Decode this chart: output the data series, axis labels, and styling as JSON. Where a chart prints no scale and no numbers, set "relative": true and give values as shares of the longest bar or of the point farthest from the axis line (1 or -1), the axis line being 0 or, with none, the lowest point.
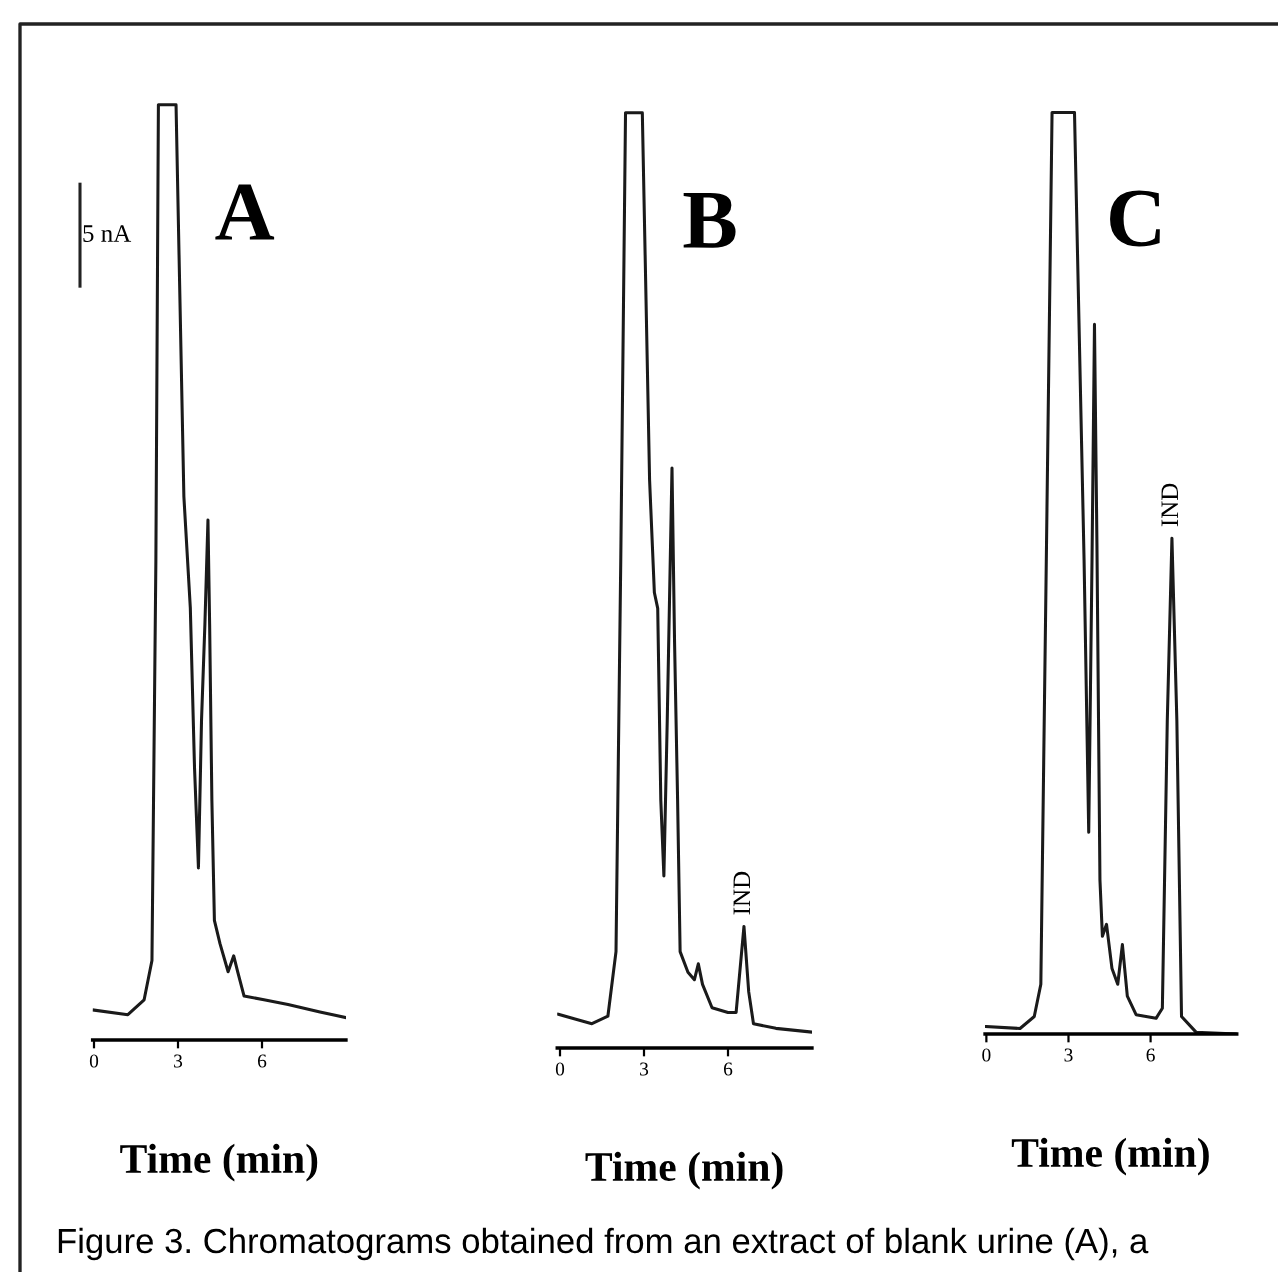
{
  "chart_data": [
    {
      "type": "line",
      "title": "A",
      "xlabel": "Time (min)",
      "relative": true,
      "xlim": [
        -0.05,
        9.0
      ],
      "xticks": [
        0,
        3,
        6
      ],
      "grid": false,
      "legend": false,
      "tick_labels": "x",
      "annotations": [
        "5 nA",
        "Figure 3. Chromatograms obtained from an extract of blank urine (A), a"
      ],
      "series": [
        {
          "color": "#1a1a1a",
          "x": [
            0.0,
            1.21,
            1.79,
            2.07,
            2.21,
            2.3,
            2.93,
            3.21,
            3.44,
            3.59,
            3.73,
            3.84,
            3.96,
            4.07,
            4.13,
            4.21,
            4.3,
            4.5,
            4.79,
            4.99,
            5.13,
            5.36,
            6.07,
            6.93,
            8.07,
            8.99
          ],
          "values": [
            0.032,
            0.027,
            0.043,
            0.085,
            0.513,
            1.0,
            1.0,
            0.581,
            0.462,
            0.291,
            0.184,
            0.342,
            0.444,
            0.556,
            0.444,
            0.256,
            0.128,
            0.103,
            0.073,
            0.09,
            0.073,
            0.047,
            0.043,
            0.038,
            0.03,
            0.024
          ]
        }
      ]
    },
    {
      "type": "line",
      "title": "B",
      "xlabel": "Time (min)",
      "relative": true,
      "xlim": [
        -0.1,
        9.0
      ],
      "xticks": [
        0,
        3,
        6
      ],
      "grid": false,
      "legend": false,
      "tick_labels": "x",
      "annotations": [
        {
          "text": "IND",
          "x": 6.57,
          "y": 0.13
        }
      ],
      "series": [
        {
          "color": "#1a1a1a",
          "x": [
            -0.06,
            1.14,
            1.71,
            2.0,
            2.17,
            2.34,
            2.94,
            3.2,
            3.37,
            3.49,
            3.6,
            3.71,
            3.83,
            4.0,
            4.09,
            4.2,
            4.29,
            4.57,
            4.8,
            4.94,
            5.09,
            5.43,
            6.0,
            6.29,
            6.57,
            6.74,
            6.91,
            7.71,
            9.0
          ],
          "values": [
            0.036,
            0.026,
            0.034,
            0.103,
            0.521,
            1.0,
            1.0,
            0.607,
            0.487,
            0.47,
            0.265,
            0.184,
            0.35,
            0.62,
            0.436,
            0.265,
            0.103,
            0.081,
            0.073,
            0.09,
            0.068,
            0.043,
            0.038,
            0.038,
            0.13,
            0.06,
            0.026,
            0.021,
            0.017
          ]
        }
      ]
    },
    {
      "type": "line",
      "title": "C",
      "xlabel": "Time (min)",
      "relative": true,
      "xlim": [
        -0.05,
        9.15
      ],
      "xticks": [
        0,
        3,
        6
      ],
      "grid": false,
      "legend": false,
      "tick_labels": "x",
      "annotations": [
        {
          "text": "IND",
          "x": 6.78,
          "y": 0.538
        }
      ],
      "series": [
        {
          "color": "#1a1a1a",
          "x": [
            0.0,
            1.23,
            1.75,
            1.99,
            2.19,
            2.4,
            3.22,
            3.57,
            3.74,
            3.86,
            3.95,
            4.04,
            4.15,
            4.24,
            4.39,
            4.59,
            4.8,
            4.97,
            5.15,
            5.47,
            6.2,
            6.43,
            6.61,
            6.78,
            6.96,
            7.13,
            7.66,
            9.12
          ],
          "values": [
            0.008,
            0.006,
            0.019,
            0.054,
            0.514,
            1.0,
            1.0,
            0.514,
            0.219,
            0.514,
            0.77,
            0.531,
            0.167,
            0.106,
            0.119,
            0.071,
            0.054,
            0.097,
            0.041,
            0.021,
            0.017,
            0.028,
            0.34,
            0.538,
            0.34,
            0.019,
            0.002,
            0.0
          ]
        }
      ]
    }
  ]
}
